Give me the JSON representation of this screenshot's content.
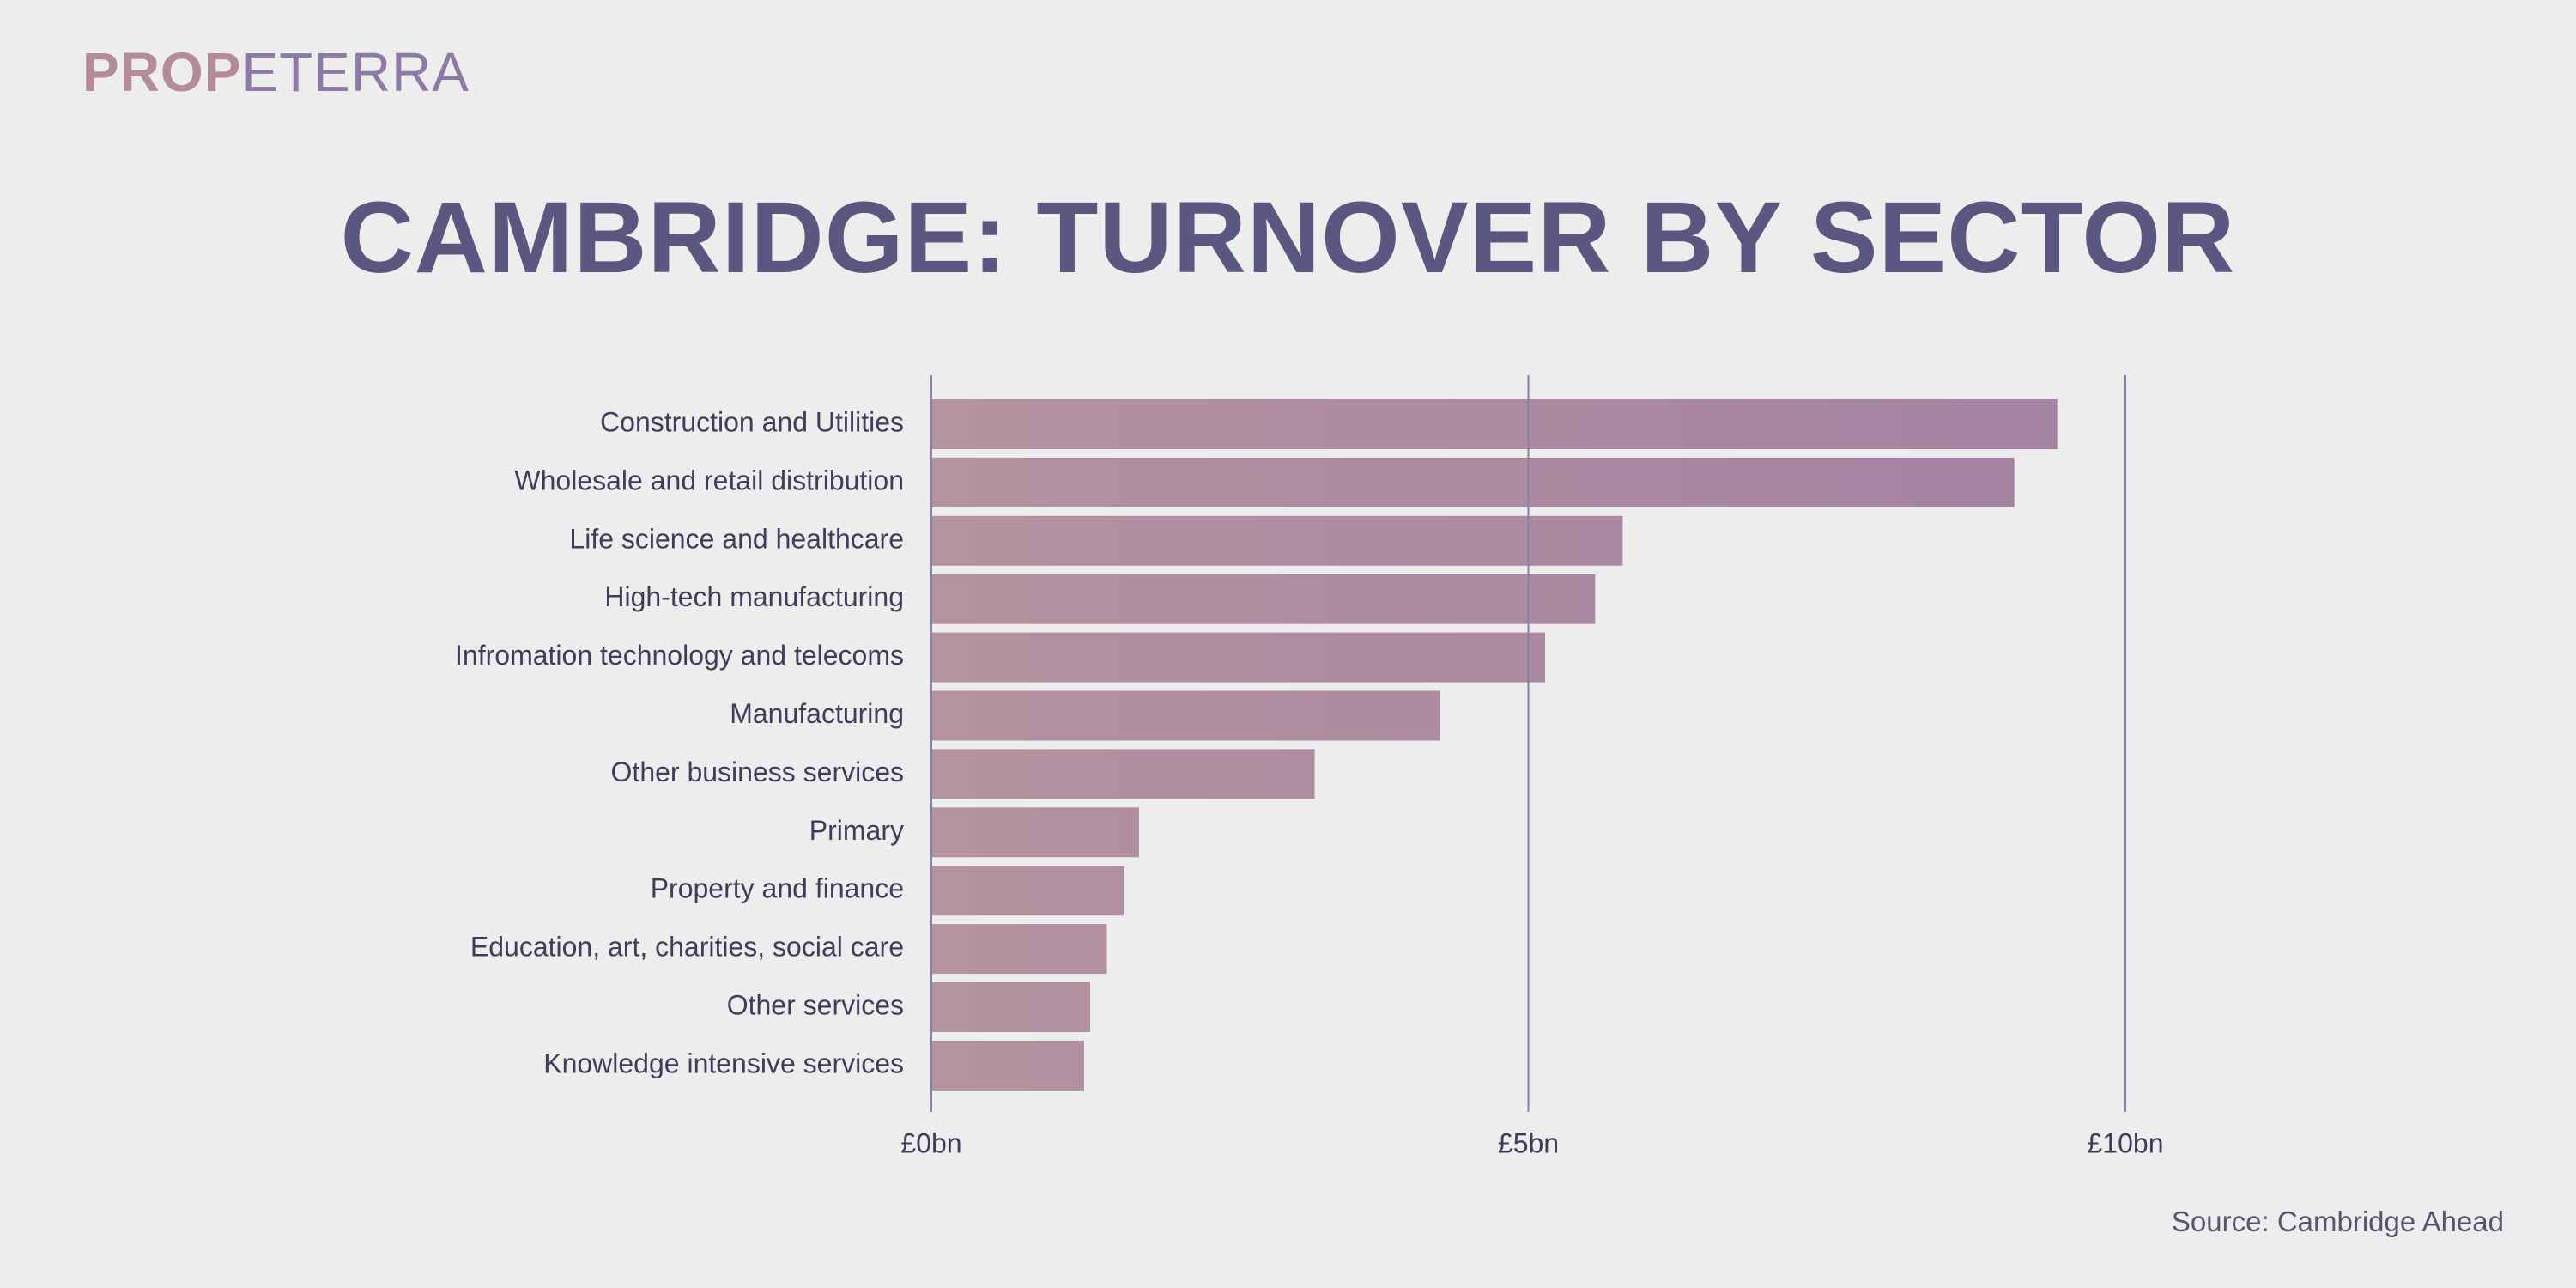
{
  "brand": {
    "logo_part1": "PROP",
    "logo_part2": "ETERRA"
  },
  "colors": {
    "background": "#ededed",
    "title": "#5a5780",
    "label": "#3f3d5a",
    "gridline": "#8582a3",
    "bar_start": "#b5929f",
    "bar_end": "#a382a2",
    "logo_start": "#b48c98",
    "logo_end": "#8f7aa6"
  },
  "chart_data": {
    "type": "bar",
    "orientation": "horizontal",
    "title": "CAMBRIDGE: TURNOVER BY SECTOR",
    "xlabel": "",
    "ylabel": "",
    "unit": "£bn",
    "xlim": [
      0,
      10
    ],
    "xticks": [
      0,
      5,
      10
    ],
    "xtick_labels": [
      "£0bn",
      "£5bn",
      "£10bn"
    ],
    "grid": true,
    "categories": [
      "Construction and Utilities",
      "Wholesale and retail distribution",
      "Life science and healthcare",
      "High-tech manufacturing",
      "Infromation technology and telecoms",
      "Manufacturing",
      "Other business services",
      "Primary",
      "Property and finance",
      "Education, art, charities, social care",
      "Other services",
      "Knowledge intensive services"
    ],
    "values": [
      9.43,
      9.07,
      5.79,
      5.56,
      5.14,
      4.26,
      3.21,
      1.74,
      1.61,
      1.47,
      1.33,
      1.28
    ]
  },
  "source": "Source: Cambridge Ahead"
}
